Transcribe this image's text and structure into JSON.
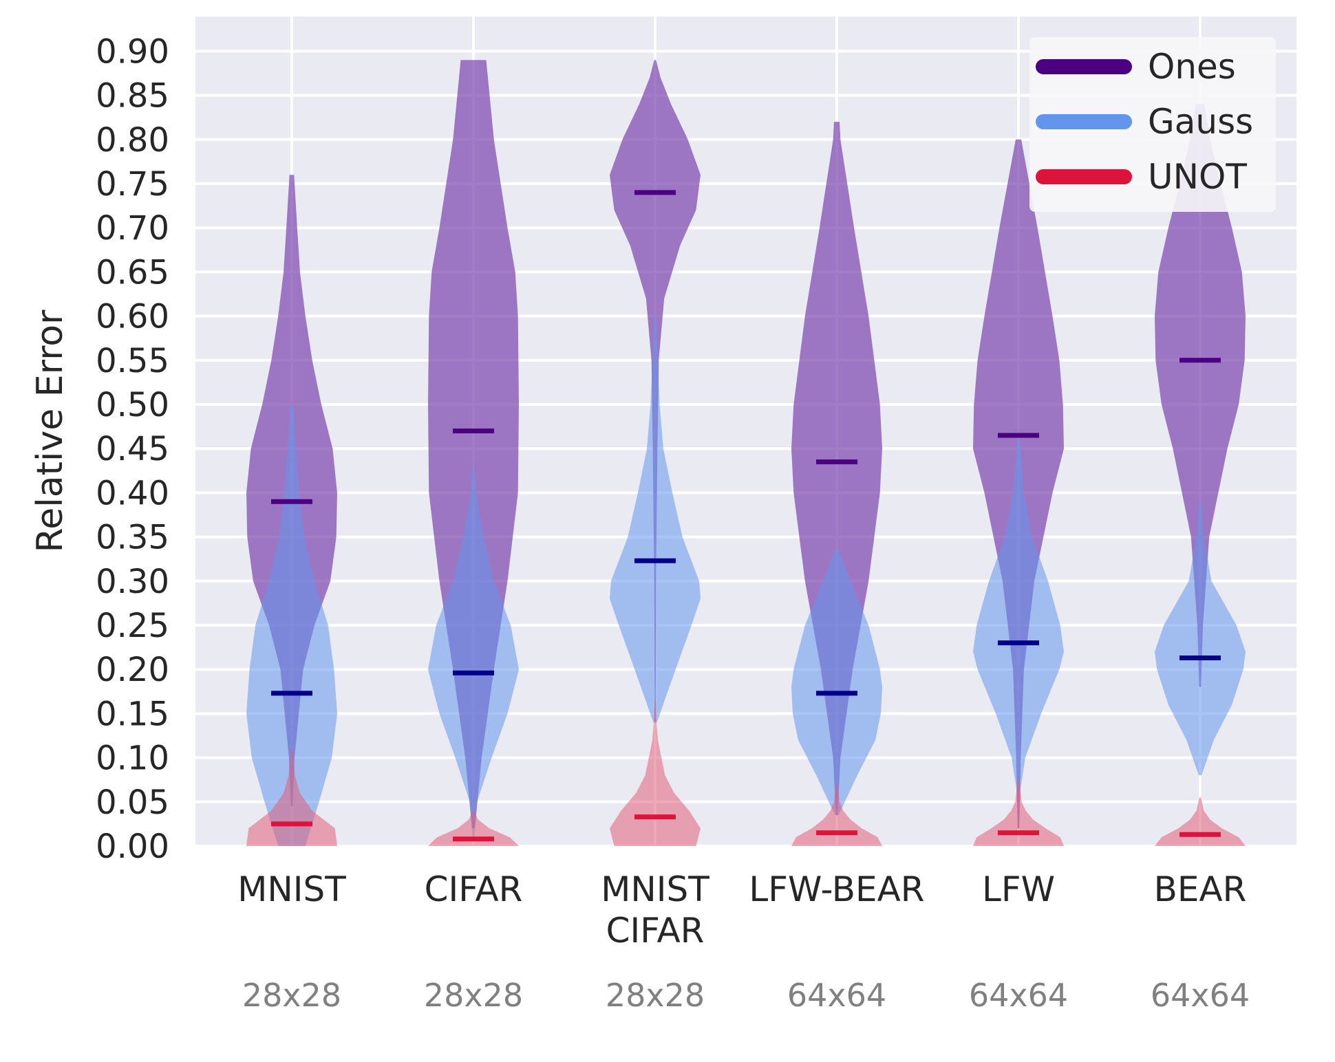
{
  "chart_data": {
    "type": "violin",
    "ylabel": "Relative Error",
    "ylim": [
      0,
      0.92
    ],
    "yticks": [
      "0.00",
      "0.05",
      "0.10",
      "0.15",
      "0.20",
      "0.25",
      "0.30",
      "0.35",
      "0.40",
      "0.45",
      "0.50",
      "0.55",
      "0.60",
      "0.65",
      "0.70",
      "0.75",
      "0.80",
      "0.85",
      "0.90"
    ],
    "grid": true,
    "legend_position": "top-right",
    "categories": [
      {
        "label_lines": [
          "MNIST"
        ],
        "resolution": "28x28"
      },
      {
        "label_lines": [
          "CIFAR"
        ],
        "resolution": "28x28"
      },
      {
        "label_lines": [
          "MNIST",
          "CIFAR"
        ],
        "resolution": "28x28"
      },
      {
        "label_lines": [
          "LFW-BEAR"
        ],
        "resolution": "64x64"
      },
      {
        "label_lines": [
          "LFW"
        ],
        "resolution": "64x64"
      },
      {
        "label_lines": [
          "BEAR"
        ],
        "resolution": "64x64"
      }
    ],
    "series": [
      {
        "name": "Ones",
        "color": "#4B0082",
        "fill": "#7E4AAE",
        "distributions": [
          {
            "median": 0.39,
            "min": 0.045,
            "max": 0.76,
            "profile": [
              [
                0.045,
                0.02
              ],
              [
                0.1,
                0.06
              ],
              [
                0.2,
                0.25
              ],
              [
                0.25,
                0.5
              ],
              [
                0.3,
                0.85
              ],
              [
                0.35,
                0.98
              ],
              [
                0.4,
                1.0
              ],
              [
                0.45,
                0.9
              ],
              [
                0.5,
                0.65
              ],
              [
                0.55,
                0.45
              ],
              [
                0.6,
                0.3
              ],
              [
                0.65,
                0.18
              ],
              [
                0.7,
                0.12
              ],
              [
                0.76,
                0.05
              ]
            ]
          },
          {
            "median": 0.47,
            "min": 0.02,
            "max": 0.89,
            "profile": [
              [
                0.02,
                0.03
              ],
              [
                0.1,
                0.18
              ],
              [
                0.2,
                0.45
              ],
              [
                0.3,
                0.75
              ],
              [
                0.4,
                0.98
              ],
              [
                0.5,
                1.0
              ],
              [
                0.6,
                0.98
              ],
              [
                0.65,
                0.92
              ],
              [
                0.7,
                0.75
              ],
              [
                0.8,
                0.45
              ],
              [
                0.89,
                0.28
              ]
            ]
          },
          {
            "median": 0.74,
            "min": 0.14,
            "max": 0.89,
            "profile": [
              [
                0.14,
                0.01
              ],
              [
                0.3,
                0.02
              ],
              [
                0.45,
                0.05
              ],
              [
                0.55,
                0.08
              ],
              [
                0.62,
                0.2
              ],
              [
                0.68,
                0.55
              ],
              [
                0.72,
                0.9
              ],
              [
                0.76,
                1.0
              ],
              [
                0.8,
                0.72
              ],
              [
                0.84,
                0.35
              ],
              [
                0.87,
                0.12
              ],
              [
                0.89,
                0.02
              ]
            ]
          },
          {
            "median": 0.435,
            "min": 0.035,
            "max": 0.82,
            "profile": [
              [
                0.035,
                0.02
              ],
              [
                0.1,
                0.08
              ],
              [
                0.2,
                0.35
              ],
              [
                0.3,
                0.7
              ],
              [
                0.4,
                0.95
              ],
              [
                0.45,
                1.0
              ],
              [
                0.5,
                0.95
              ],
              [
                0.6,
                0.7
              ],
              [
                0.7,
                0.38
              ],
              [
                0.8,
                0.08
              ],
              [
                0.82,
                0.06
              ]
            ]
          },
          {
            "median": 0.465,
            "min": 0.02,
            "max": 0.8,
            "profile": [
              [
                0.02,
                0.02
              ],
              [
                0.1,
                0.05
              ],
              [
                0.2,
                0.12
              ],
              [
                0.3,
                0.35
              ],
              [
                0.4,
                0.75
              ],
              [
                0.45,
                1.0
              ],
              [
                0.5,
                0.98
              ],
              [
                0.55,
                0.9
              ],
              [
                0.6,
                0.75
              ],
              [
                0.7,
                0.42
              ],
              [
                0.8,
                0.06
              ]
            ]
          },
          {
            "median": 0.55,
            "min": 0.18,
            "max": 0.84,
            "profile": [
              [
                0.18,
                0.02
              ],
              [
                0.25,
                0.06
              ],
              [
                0.35,
                0.2
              ],
              [
                0.45,
                0.6
              ],
              [
                0.5,
                0.85
              ],
              [
                0.55,
                0.98
              ],
              [
                0.6,
                1.0
              ],
              [
                0.65,
                0.92
              ],
              [
                0.7,
                0.7
              ],
              [
                0.75,
                0.45
              ],
              [
                0.8,
                0.22
              ],
              [
                0.84,
                0.1
              ]
            ]
          }
        ]
      },
      {
        "name": "Gauss",
        "color": "#00008B",
        "fill": "#6495ED",
        "distributions": [
          {
            "median": 0.173,
            "min": 0.0,
            "max": 0.5,
            "profile": [
              [
                0.0,
                0.3
              ],
              [
                0.05,
                0.6
              ],
              [
                0.1,
                0.88
              ],
              [
                0.15,
                1.0
              ],
              [
                0.2,
                0.93
              ],
              [
                0.25,
                0.8
              ],
              [
                0.3,
                0.5
              ],
              [
                0.35,
                0.28
              ],
              [
                0.4,
                0.16
              ],
              [
                0.45,
                0.09
              ],
              [
                0.5,
                0.03
              ]
            ]
          },
          {
            "median": 0.196,
            "min": 0.01,
            "max": 0.43,
            "profile": [
              [
                0.01,
                0.02
              ],
              [
                0.05,
                0.08
              ],
              [
                0.1,
                0.4
              ],
              [
                0.15,
                0.75
              ],
              [
                0.2,
                1.0
              ],
              [
                0.25,
                0.82
              ],
              [
                0.3,
                0.45
              ],
              [
                0.35,
                0.22
              ],
              [
                0.4,
                0.06
              ],
              [
                0.43,
                0.02
              ]
            ]
          },
          {
            "median": 0.323,
            "min": 0.14,
            "max": 0.6,
            "profile": [
              [
                0.14,
                0.04
              ],
              [
                0.2,
                0.45
              ],
              [
                0.25,
                0.8
              ],
              [
                0.28,
                1.0
              ],
              [
                0.3,
                0.97
              ],
              [
                0.35,
                0.6
              ],
              [
                0.4,
                0.38
              ],
              [
                0.45,
                0.18
              ],
              [
                0.5,
                0.1
              ],
              [
                0.55,
                0.06
              ],
              [
                0.6,
                0.02
              ]
            ]
          },
          {
            "median": 0.173,
            "min": 0.035,
            "max": 0.335,
            "profile": [
              [
                0.035,
                0.04
              ],
              [
                0.08,
                0.45
              ],
              [
                0.12,
                0.85
              ],
              [
                0.15,
                0.97
              ],
              [
                0.18,
                1.0
              ],
              [
                0.2,
                0.95
              ],
              [
                0.25,
                0.7
              ],
              [
                0.3,
                0.3
              ],
              [
                0.335,
                0.05
              ]
            ]
          },
          {
            "median": 0.23,
            "min": 0.06,
            "max": 0.46,
            "profile": [
              [
                0.06,
                0.03
              ],
              [
                0.1,
                0.15
              ],
              [
                0.15,
                0.5
              ],
              [
                0.2,
                0.9
              ],
              [
                0.22,
                1.0
              ],
              [
                0.25,
                0.92
              ],
              [
                0.3,
                0.65
              ],
              [
                0.35,
                0.3
              ],
              [
                0.4,
                0.12
              ],
              [
                0.46,
                0.03
              ]
            ]
          },
          {
            "median": 0.213,
            "min": 0.08,
            "max": 0.39,
            "profile": [
              [
                0.08,
                0.03
              ],
              [
                0.12,
                0.3
              ],
              [
                0.16,
                0.7
              ],
              [
                0.2,
                0.95
              ],
              [
                0.22,
                1.0
              ],
              [
                0.25,
                0.8
              ],
              [
                0.3,
                0.25
              ],
              [
                0.35,
                0.08
              ],
              [
                0.39,
                0.02
              ]
            ]
          }
        ]
      },
      {
        "name": "UNOT",
        "color": "#DC143C",
        "fill": "#E0607A",
        "distributions": [
          {
            "median": 0.025,
            "min": 0.0,
            "max": 0.11,
            "profile": [
              [
                0.0,
                1.0
              ],
              [
                0.02,
                0.95
              ],
              [
                0.04,
                0.45
              ],
              [
                0.06,
                0.18
              ],
              [
                0.08,
                0.07
              ],
              [
                0.11,
                0.02
              ]
            ]
          },
          {
            "median": 0.008,
            "min": 0.0,
            "max": 0.04,
            "profile": [
              [
                0.0,
                1.0
              ],
              [
                0.01,
                0.8
              ],
              [
                0.02,
                0.35
              ],
              [
                0.03,
                0.1
              ],
              [
                0.04,
                0.02
              ]
            ]
          },
          {
            "median": 0.033,
            "min": 0.0,
            "max": 0.165,
            "profile": [
              [
                0.0,
                0.9
              ],
              [
                0.02,
                1.0
              ],
              [
                0.04,
                0.75
              ],
              [
                0.06,
                0.42
              ],
              [
                0.08,
                0.22
              ],
              [
                0.1,
                0.14
              ],
              [
                0.12,
                0.06
              ],
              [
                0.14,
                0.03
              ],
              [
                0.165,
                0.01
              ]
            ]
          },
          {
            "median": 0.015,
            "min": 0.0,
            "max": 0.07,
            "profile": [
              [
                0.0,
                1.0
              ],
              [
                0.01,
                0.9
              ],
              [
                0.02,
                0.55
              ],
              [
                0.03,
                0.3
              ],
              [
                0.04,
                0.14
              ],
              [
                0.05,
                0.06
              ],
              [
                0.07,
                0.02
              ]
            ]
          },
          {
            "median": 0.015,
            "min": 0.0,
            "max": 0.075,
            "profile": [
              [
                0.0,
                1.0
              ],
              [
                0.01,
                0.92
              ],
              [
                0.02,
                0.6
              ],
              [
                0.03,
                0.32
              ],
              [
                0.04,
                0.16
              ],
              [
                0.05,
                0.07
              ],
              [
                0.075,
                0.02
              ]
            ]
          },
          {
            "median": 0.013,
            "min": 0.0,
            "max": 0.055,
            "profile": [
              [
                0.0,
                1.0
              ],
              [
                0.01,
                0.85
              ],
              [
                0.02,
                0.48
              ],
              [
                0.03,
                0.22
              ],
              [
                0.04,
                0.08
              ],
              [
                0.055,
                0.02
              ]
            ]
          }
        ]
      }
    ]
  }
}
